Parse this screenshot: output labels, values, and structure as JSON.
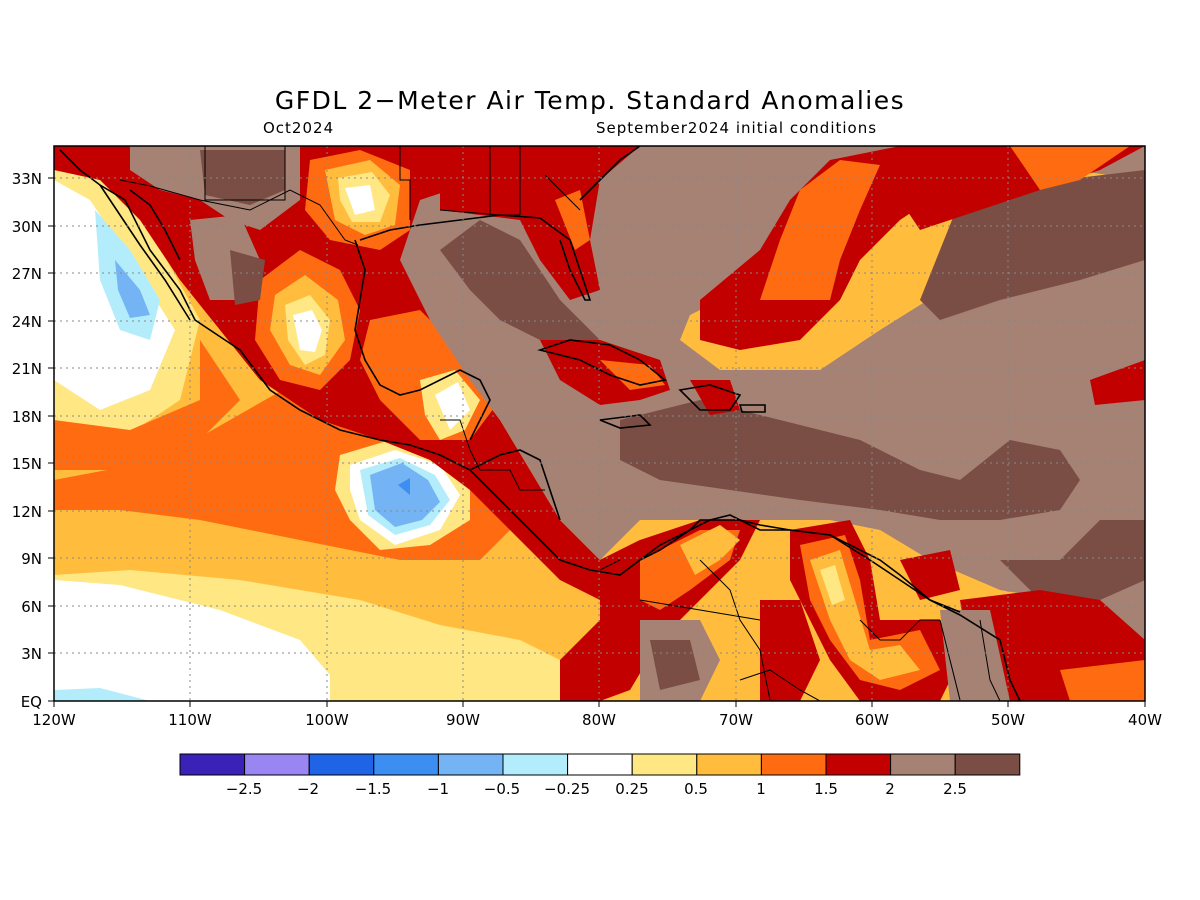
{
  "title": "GFDL 2−Meter Air Temp. Standard Anomalies",
  "subtitle_left": "Oct2024",
  "subtitle_right": "September2024 initial conditions",
  "map": {
    "lat_labels": [
      "33N",
      "30N",
      "27N",
      "24N",
      "21N",
      "18N",
      "15N",
      "12N",
      "9N",
      "6N",
      "3N",
      "EQ"
    ],
    "lon_labels": [
      "120W",
      "110W",
      "100W",
      "90W",
      "80W",
      "70W",
      "60W",
      "50W",
      "40W"
    ]
  },
  "colorbar": {
    "colors": [
      "#3a22b8",
      "#9a86f3",
      "#1f63e6",
      "#3d8ef2",
      "#74b3f4",
      "#b3edfb",
      "#ffffff",
      "#ffe783",
      "#ffbc3d",
      "#ff6b10",
      "#c30000",
      "#a58274",
      "#7a4e44"
    ],
    "labels": [
      "−2.5",
      "−2",
      "−1.5",
      "−1",
      "−0.5",
      "−0.25",
      "0.25",
      "0.5",
      "1",
      "1.5",
      "2",
      "2.5"
    ]
  }
}
